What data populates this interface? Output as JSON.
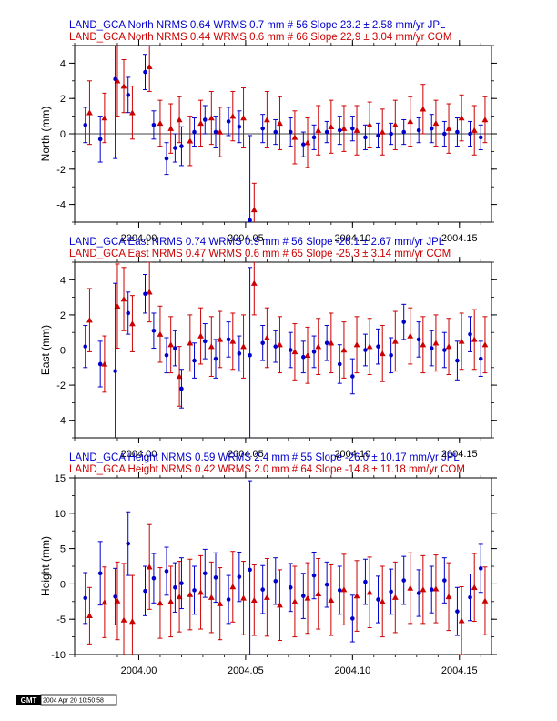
{
  "colors": {
    "series_a": "#0000cc",
    "series_b": "#cc0000",
    "axis": "#000000"
  },
  "footer": {
    "logo": "GMT",
    "timestamp": "2004 Apr 20 10:50:58"
  },
  "chart_data": [
    {
      "type": "scatter",
      "header_a": "LAND_GCA North NRMS 0.64 WRMS  0.7 mm # 56 Slope   23.2 ±  2.58 mm/yr JPL",
      "header_b": "LAND_GCA North NRMS 0.44 WRMS  0.6 mm # 66 Slope   22.9 ±  3.04 mm/yr COM",
      "ylabel": "North (mm)",
      "xlim": [
        2003.97,
        2004.165
      ],
      "ylim": [
        -5,
        5
      ],
      "yticks": [
        -4,
        -2,
        0,
        2,
        4
      ],
      "xticks": [
        "2004.00",
        "2004.05",
        "2004.10",
        "2004.15"
      ],
      "series": [
        {
          "name": "JPL",
          "color": "#0000cc",
          "marker": "circle",
          "x": [
            2003.975,
            2003.982,
            2003.989,
            2003.995,
            2004.003,
            2004.007,
            2004.013,
            2004.017,
            2004.02,
            2004.026,
            2004.031,
            2004.036,
            2004.042,
            2004.047,
            2004.052,
            2004.058,
            2004.064,
            2004.071,
            2004.077,
            2004.082,
            2004.088,
            2004.094,
            2004.1,
            2004.106,
            2004.112,
            2004.118,
            2004.124,
            2004.131,
            2004.137,
            2004.143,
            2004.149,
            2004.155,
            2004.16
          ],
          "y": [
            0.5,
            -0.3,
            3.1,
            2.2,
            3.5,
            0.5,
            -1.4,
            -0.8,
            -0.7,
            0.1,
            0.8,
            0.1,
            0.7,
            0.4,
            -4.9,
            0.3,
            0.1,
            0.1,
            -0.6,
            -0.2,
            0.1,
            0.2,
            0.3,
            -0.2,
            -0.1,
            0.0,
            0.1,
            0.2,
            0.3,
            0.0,
            0.1,
            0.0,
            -0.2
          ],
          "err": [
            1.0,
            1.3,
            4.5,
            1.0,
            1.0,
            0.8,
            0.9,
            0.8,
            1.1,
            0.8,
            0.8,
            0.9,
            0.8,
            0.9,
            4.8,
            0.8,
            0.7,
            0.8,
            0.7,
            0.7,
            0.6,
            0.8,
            0.7,
            0.7,
            0.7,
            0.6,
            0.7,
            0.7,
            0.8,
            0.7,
            0.8,
            0.7,
            0.7
          ]
        },
        {
          "name": "COM",
          "color": "#cc0000",
          "marker": "triangle",
          "x": [
            2003.977,
            2003.984,
            2003.99,
            2003.993,
            2003.997,
            2004.005,
            2004.01,
            2004.015,
            2004.019,
            2004.024,
            2004.029,
            2004.034,
            2004.038,
            2004.044,
            2004.049,
            2004.054,
            2004.06,
            2004.066,
            2004.073,
            2004.079,
            2004.084,
            2004.09,
            2004.096,
            2004.102,
            2004.108,
            2004.114,
            2004.12,
            2004.127,
            2004.133,
            2004.139,
            2004.145,
            2004.151,
            2004.157,
            2004.162
          ],
          "y": [
            1.2,
            0.9,
            3.0,
            2.7,
            1.2,
            3.8,
            0.6,
            0.3,
            0.8,
            -0.4,
            0.6,
            0.9,
            0.1,
            1.0,
            0.9,
            -4.3,
            0.8,
            0.6,
            -0.2,
            -0.5,
            0.2,
            0.4,
            0.3,
            0.2,
            0.5,
            0.1,
            0.5,
            0.7,
            1.4,
            0.6,
            0.3,
            0.9,
            0.2,
            0.8
          ],
          "err": [
            1.8,
            1.4,
            2.0,
            1.5,
            1.5,
            1.4,
            1.3,
            1.4,
            1.3,
            1.4,
            1.3,
            1.5,
            1.4,
            1.4,
            1.7,
            1.5,
            1.6,
            1.5,
            1.5,
            1.4,
            1.4,
            1.5,
            1.3,
            1.4,
            1.3,
            1.3,
            1.4,
            1.4,
            1.4,
            1.3,
            1.4,
            1.3,
            1.4,
            1.3
          ]
        }
      ]
    },
    {
      "type": "scatter",
      "header_a": "LAND_GCA East NRMS 0.74 WRMS  0.9 mm # 56 Slope  -26.1 ±  2.67 mm/yr JPL",
      "header_b": "LAND_GCA East NRMS 0.47 WRMS  0.6 mm # 65 Slope  -25.3 ±  3.14 mm/yr COM",
      "ylabel": "East (mm)",
      "xlim": [
        2003.97,
        2004.165
      ],
      "ylim": [
        -5,
        5
      ],
      "yticks": [
        -4,
        -2,
        0,
        2,
        4
      ],
      "xticks": [
        "2004.00",
        "2004.05",
        "2004.10",
        "2004.15"
      ],
      "series": [
        {
          "name": "JPL",
          "color": "#0000cc",
          "marker": "circle",
          "x": [
            2003.975,
            2003.982,
            2003.989,
            2003.995,
            2004.003,
            2004.007,
            2004.013,
            2004.017,
            2004.02,
            2004.026,
            2004.031,
            2004.036,
            2004.042,
            2004.047,
            2004.052,
            2004.058,
            2004.064,
            2004.071,
            2004.077,
            2004.082,
            2004.088,
            2004.094,
            2004.1,
            2004.106,
            2004.112,
            2004.118,
            2004.124,
            2004.131,
            2004.137,
            2004.143,
            2004.149,
            2004.155,
            2004.16
          ],
          "y": [
            0.2,
            -0.8,
            -1.2,
            2.1,
            3.2,
            1.1,
            -0.3,
            0.1,
            -2.2,
            -0.6,
            0.5,
            -0.5,
            0.6,
            -0.2,
            -0.3,
            0.4,
            0.2,
            0.0,
            -0.4,
            -0.1,
            0.4,
            -0.8,
            -1.5,
            0.0,
            0.2,
            -0.3,
            1.6,
            0.6,
            0.1,
            0.0,
            -0.6,
            0.9,
            -0.5
          ],
          "err": [
            1.2,
            1.3,
            5.0,
            1.2,
            1.1,
            1.0,
            1.0,
            1.0,
            1.1,
            1.0,
            1.0,
            1.1,
            1.0,
            1.0,
            5.0,
            1.0,
            0.9,
            1.0,
            0.9,
            0.9,
            1.0,
            1.1,
            1.0,
            0.9,
            1.0,
            1.0,
            1.0,
            1.0,
            1.0,
            1.0,
            1.1,
            1.0,
            1.0
          ]
        },
        {
          "name": "COM",
          "color": "#cc0000",
          "marker": "triangle",
          "x": [
            2003.977,
            2003.984,
            2003.99,
            2003.993,
            2003.997,
            2004.005,
            2004.01,
            2004.015,
            2004.019,
            2004.024,
            2004.029,
            2004.034,
            2004.038,
            2004.044,
            2004.049,
            2004.054,
            2004.06,
            2004.066,
            2004.073,
            2004.079,
            2004.084,
            2004.09,
            2004.096,
            2004.102,
            2004.108,
            2004.114,
            2004.12,
            2004.127,
            2004.133,
            2004.139,
            2004.145,
            2004.151,
            2004.157,
            2004.162
          ],
          "y": [
            1.7,
            -0.8,
            2.5,
            2.9,
            1.5,
            3.3,
            0.9,
            0.3,
            -1.5,
            0.4,
            0.8,
            0.2,
            0.6,
            0.5,
            0.2,
            3.8,
            0.7,
            0.3,
            -0.1,
            -0.3,
            0.2,
            0.4,
            0.0,
            0.3,
            0.2,
            -0.2,
            0.5,
            0.8,
            0.3,
            0.4,
            0.2,
            0.5,
            0.6,
            0.3
          ],
          "err": [
            1.8,
            1.6,
            2.4,
            1.8,
            1.6,
            1.7,
            1.6,
            1.6,
            1.7,
            1.6,
            1.6,
            1.7,
            1.6,
            1.6,
            1.8,
            1.8,
            1.7,
            1.6,
            1.6,
            1.6,
            1.6,
            1.7,
            1.6,
            1.6,
            1.6,
            1.6,
            1.7,
            1.6,
            1.6,
            1.6,
            1.6,
            1.6,
            1.7,
            1.6
          ]
        }
      ]
    },
    {
      "type": "scatter",
      "header_a": "LAND_GCA Height NRMS 0.59 WRMS  2.4 mm # 55 Slope  -26.0 ± 10.17 mm/yr JPL",
      "header_b": "LAND_GCA Height NRMS 0.42 WRMS  2.0 mm # 64 Slope  -14.8 ± 11.18 mm/yr COM",
      "ylabel": "Height (mm)",
      "xlim": [
        2003.97,
        2004.165
      ],
      "ylim": [
        -10,
        15
      ],
      "yticks": [
        -10,
        -5,
        0,
        5,
        10,
        15
      ],
      "xticks": [
        "2004.00",
        "2004.05",
        "2004.10",
        "2004.15"
      ],
      "series": [
        {
          "name": "JPL",
          "color": "#0000cc",
          "marker": "circle",
          "x": [
            2003.975,
            2003.982,
            2003.989,
            2003.995,
            2004.003,
            2004.007,
            2004.013,
            2004.017,
            2004.02,
            2004.026,
            2004.031,
            2004.036,
            2004.042,
            2004.047,
            2004.052,
            2004.058,
            2004.064,
            2004.071,
            2004.077,
            2004.082,
            2004.088,
            2004.094,
            2004.1,
            2004.106,
            2004.112,
            2004.118,
            2004.124,
            2004.131,
            2004.137,
            2004.143,
            2004.149,
            2004.155,
            2004.16
          ],
          "y": [
            -2.0,
            1.5,
            -1.8,
            5.7,
            -1.0,
            0.8,
            1.8,
            -0.5,
            0.1,
            -0.9,
            1.5,
            0.9,
            -2.2,
            1.0,
            2.0,
            -0.8,
            0.4,
            -0.5,
            -1.7,
            1.2,
            -0.1,
            -0.9,
            -4.9,
            0.3,
            -2.2,
            -1.1,
            0.5,
            -1.3,
            -0.8,
            0.5,
            -3.9,
            -1.9,
            2.2
          ],
          "err": [
            3.6,
            4.5,
            4.0,
            4.5,
            3.5,
            3.5,
            3.4,
            3.5,
            3.6,
            3.4,
            3.4,
            3.5,
            3.4,
            3.5,
            12.6,
            3.4,
            3.3,
            3.4,
            3.2,
            3.3,
            3.2,
            3.4,
            3.3,
            3.2,
            3.3,
            3.2,
            3.4,
            3.3,
            3.3,
            3.2,
            3.4,
            3.3,
            3.4
          ]
        },
        {
          "name": "COM",
          "color": "#cc0000",
          "marker": "triangle",
          "x": [
            2003.977,
            2003.984,
            2003.99,
            2003.993,
            2003.997,
            2004.005,
            2004.01,
            2004.015,
            2004.019,
            2004.024,
            2004.029,
            2004.034,
            2004.038,
            2004.044,
            2004.049,
            2004.054,
            2004.06,
            2004.066,
            2004.073,
            2004.079,
            2004.084,
            2004.09,
            2004.096,
            2004.102,
            2004.108,
            2004.114,
            2004.12,
            2004.127,
            2004.133,
            2004.139,
            2004.145,
            2004.151,
            2004.157,
            2004.162
          ],
          "y": [
            -4.5,
            -2.6,
            -2.4,
            -5.1,
            -5.3,
            2.4,
            -2.7,
            -2.5,
            -1.8,
            -1.5,
            -1.2,
            -1.9,
            -2.8,
            -0.4,
            -2.0,
            -2.3,
            -1.9,
            -3.0,
            -2.5,
            -2.0,
            -1.4,
            -2.3,
            -0.8,
            -1.7,
            -1.2,
            -2.5,
            -1.9,
            -0.6,
            -0.8,
            -0.7,
            -1.8,
            -5.2,
            -0.5,
            -2.4
          ],
          "err": [
            4.0,
            5.0,
            5.5,
            8.0,
            6.5,
            6.0,
            5.0,
            5.0,
            5.0,
            5.0,
            5.2,
            5.0,
            5.1,
            5.0,
            5.2,
            5.0,
            5.5,
            5.0,
            5.0,
            5.0,
            5.0,
            5.0,
            5.0,
            5.0,
            5.0,
            5.0,
            5.0,
            5.0,
            4.8,
            4.8,
            4.8,
            4.8,
            4.8,
            4.8
          ]
        }
      ]
    }
  ]
}
